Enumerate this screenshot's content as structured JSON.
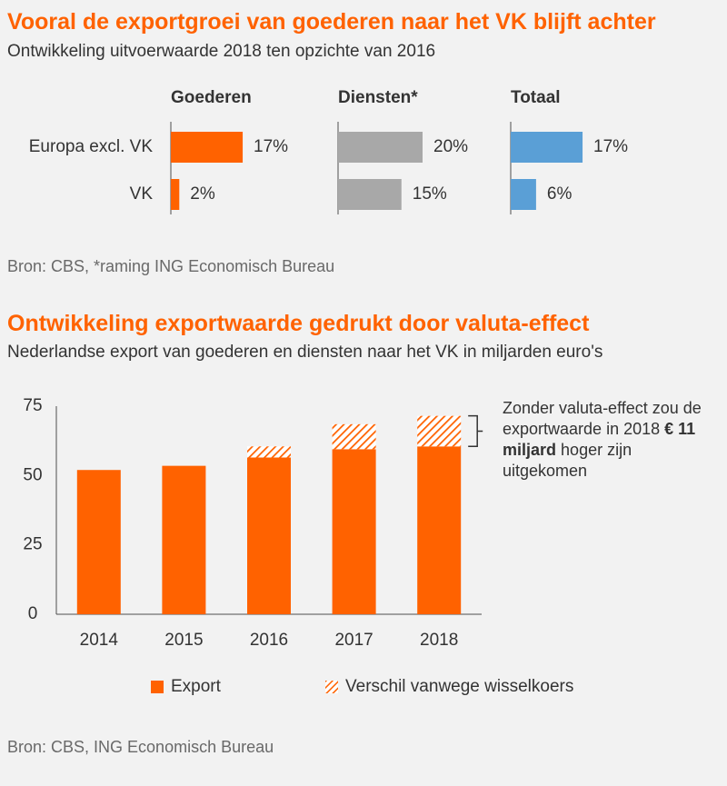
{
  "chart1": {
    "title": "Vooral de exportgroei van goederen naar het VK blijft achter",
    "subtitle": "Ontwikkeling uitvoerwaarde 2018 ten opzichte van 2016",
    "source": "Bron: CBS, *raming ING Economisch Bureau"
  },
  "chart2": {
    "title": "Ontwikkeling exportwaarde gedrukt door valuta-effect",
    "subtitle": "Nederlandse export van goederen en diensten naar het VK in miljarden euro's",
    "source": "Bron: CBS, ING Economisch Bureau",
    "annotation": {
      "line1": "Zonder valuta-effect zou de exportwaarde in 2018",
      "bold": "€ 11 miljard",
      "line2": "hoger zijn uitgekomen"
    },
    "legend": {
      "export": "Export",
      "diff": "Verschil vanwege wisselkoers"
    }
  },
  "chart_data": [
    {
      "type": "bar",
      "orientation": "horizontal",
      "categories": [
        "Europa excl. VK",
        "VK"
      ],
      "panels": [
        {
          "name": "Goederen",
          "values": [
            17,
            2
          ],
          "labels": [
            "17%",
            "2%"
          ],
          "color": "#ff6200"
        },
        {
          "name": "Diensten*",
          "values": [
            20,
            15
          ],
          "labels": [
            "20%",
            "15%"
          ],
          "color": "#a8a8a8"
        },
        {
          "name": "Totaal",
          "values": [
            17,
            6
          ],
          "labels": [
            "17%",
            "6%"
          ],
          "color": "#5a9fd6"
        }
      ],
      "unit": "%"
    },
    {
      "type": "bar",
      "stacked": true,
      "categories": [
        "2014",
        "2015",
        "2016",
        "2017",
        "2018"
      ],
      "series": [
        {
          "name": "Export",
          "values": [
            52,
            53.5,
            56.5,
            59.5,
            60.5
          ],
          "color": "#ff6200"
        },
        {
          "name": "Verschil vanwege wisselkoers",
          "values": [
            0,
            0,
            4,
            9,
            11
          ],
          "color": "#ff6200",
          "pattern": "hatched"
        }
      ],
      "ylim": [
        0,
        75
      ],
      "yticks": [
        0,
        25,
        50,
        75
      ],
      "grid": false
    }
  ]
}
